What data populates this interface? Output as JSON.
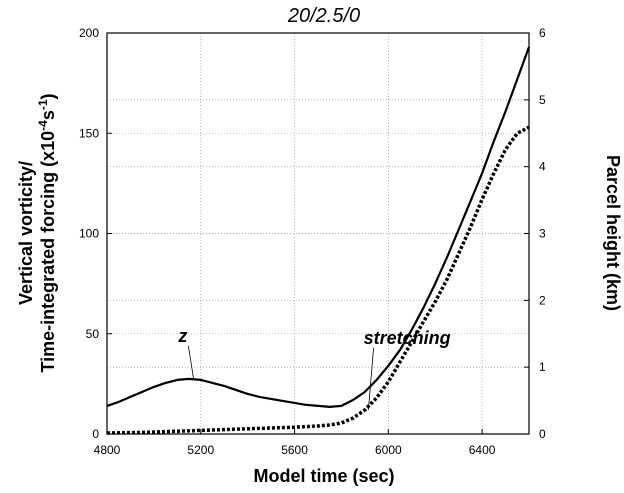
{
  "chart_data": {
    "type": "line",
    "title": "20/2.5/0",
    "xlabel": "Model time (sec)",
    "ylabel_line1": "Vertical  vorticity/",
    "ylabel_line2_prefix": "Time-integrated forcing (x10",
    "ylabel_exp1": "-4",
    "ylabel_mid": "s",
    "ylabel_exp2": "-1",
    "ylabel_suffix": ")",
    "y2label": "Parcel height (km)",
    "xlim": [
      4800,
      6600
    ],
    "ylim": [
      0,
      200
    ],
    "y2lim": [
      0,
      6
    ],
    "xticks": [
      4800,
      5200,
      5600,
      6000,
      6400
    ],
    "yticks": [
      0,
      50,
      100,
      150,
      200
    ],
    "y2ticks": [
      0,
      1,
      2,
      3,
      4,
      5,
      6
    ],
    "grid": true,
    "series": [
      {
        "name": "z",
        "style": "solid",
        "x": [
          4800,
          4850,
          4900,
          4950,
          5000,
          5050,
          5100,
          5150,
          5200,
          5250,
          5300,
          5350,
          5400,
          5450,
          5500,
          5550,
          5600,
          5650,
          5700,
          5750,
          5800,
          5850,
          5900,
          5950,
          6000,
          6050,
          6100,
          6150,
          6200,
          6250,
          6300,
          6350,
          6400,
          6450,
          6500,
          6550,
          6600
        ],
        "values": [
          14,
          16,
          18.5,
          21,
          23.5,
          25.5,
          27,
          27.5,
          27,
          25.5,
          24,
          22,
          20,
          18.5,
          17.5,
          16.5,
          15.5,
          14.5,
          14,
          13.5,
          14,
          17,
          21,
          27,
          34,
          42,
          52,
          63,
          75,
          88,
          102,
          116,
          130,
          146,
          161,
          177,
          193
        ]
      },
      {
        "name": "stretching",
        "style": "dotted",
        "x": [
          4800,
          4850,
          4900,
          4950,
          5000,
          5050,
          5100,
          5150,
          5200,
          5250,
          5300,
          5350,
          5400,
          5450,
          5500,
          5550,
          5600,
          5650,
          5700,
          5750,
          5800,
          5850,
          5900,
          5950,
          6000,
          6050,
          6100,
          6150,
          6200,
          6250,
          6300,
          6350,
          6400,
          6450,
          6500,
          6550,
          6600
        ],
        "values": [
          0.5,
          0.6,
          0.7,
          0.8,
          1.0,
          1.2,
          1.4,
          1.6,
          1.8,
          2.0,
          2.2,
          2.4,
          2.6,
          2.8,
          3.0,
          3.2,
          3.4,
          3.7,
          4.0,
          4.5,
          5.5,
          8,
          12,
          18,
          26,
          36,
          46,
          56,
          66,
          77,
          90,
          103,
          117,
          130,
          142,
          150,
          153
        ]
      }
    ],
    "annotations": [
      {
        "text": "z",
        "anchor_x": 5170,
        "anchor_y": 27,
        "label_x": 5130,
        "label_y": 46
      },
      {
        "text": "stretching",
        "anchor_x": 5915,
        "anchor_y": 12,
        "label_x": 5920,
        "label_y": 45
      }
    ]
  }
}
